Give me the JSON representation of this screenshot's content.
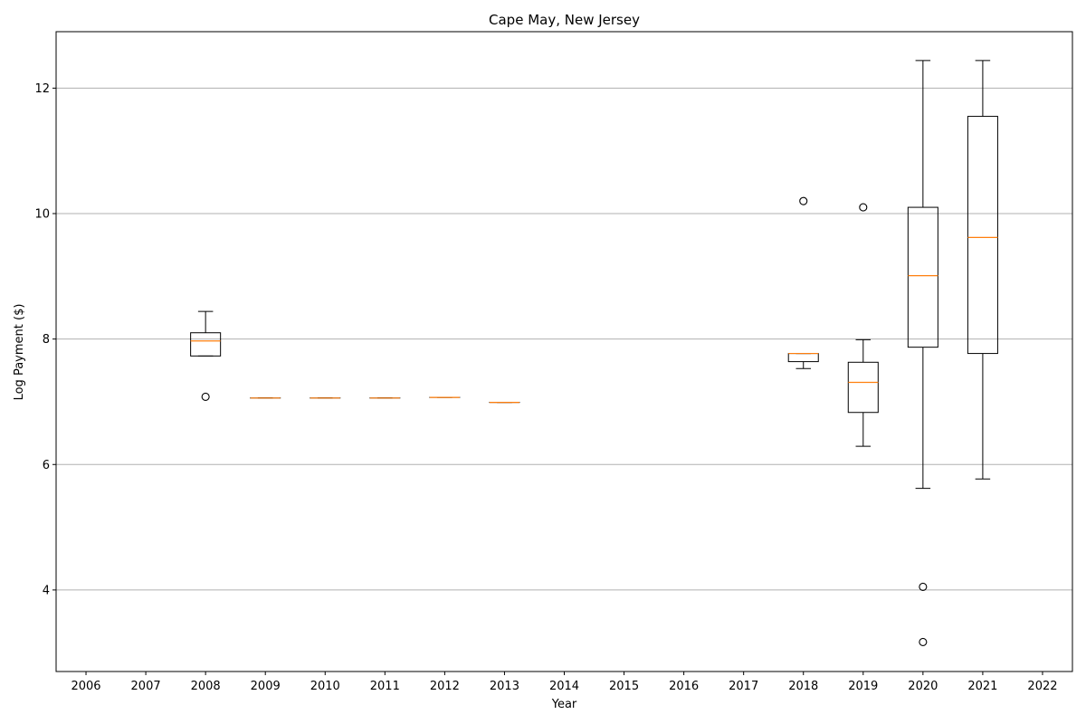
{
  "chart_data": {
    "type": "box",
    "title": "Cape May, New Jersey",
    "xlabel": "Year",
    "ylabel": "Log Payment ($)",
    "categories": [
      "2006",
      "2007",
      "2008",
      "2009",
      "2010",
      "2011",
      "2012",
      "2013",
      "2014",
      "2015",
      "2016",
      "2017",
      "2018",
      "2019",
      "2020",
      "2021",
      "2022"
    ],
    "ylim": [
      2.7,
      12.9
    ],
    "yticks": [
      4,
      6,
      8,
      10,
      12
    ],
    "grid": "y",
    "boxes": [
      {
        "category": "2008",
        "whisker_low": 7.73,
        "q1": 7.73,
        "median": 7.97,
        "q3": 8.1,
        "whisker_high": 8.44,
        "outliers": [
          7.08
        ]
      },
      {
        "category": "2009",
        "whisker_low": 7.06,
        "q1": 7.06,
        "median": 7.06,
        "q3": 7.06,
        "whisker_high": 7.06,
        "outliers": []
      },
      {
        "category": "2010",
        "whisker_low": 7.06,
        "q1": 7.06,
        "median": 7.06,
        "q3": 7.06,
        "whisker_high": 7.06,
        "outliers": []
      },
      {
        "category": "2011",
        "whisker_low": 7.06,
        "q1": 7.06,
        "median": 7.06,
        "q3": 7.06,
        "whisker_high": 7.06,
        "outliers": []
      },
      {
        "category": "2012",
        "whisker_low": 7.07,
        "q1": 7.07,
        "median": 7.07,
        "q3": 7.07,
        "whisker_high": 7.07,
        "outliers": []
      },
      {
        "category": "2013",
        "whisker_low": 6.99,
        "q1": 6.99,
        "median": 6.99,
        "q3": 6.99,
        "whisker_high": 6.99,
        "outliers": []
      },
      {
        "category": "2018",
        "whisker_low": 7.53,
        "q1": 7.64,
        "median": 7.77,
        "q3": 7.77,
        "whisker_high": 7.77,
        "outliers": [
          10.2
        ]
      },
      {
        "category": "2019",
        "whisker_low": 6.29,
        "q1": 6.83,
        "median": 7.31,
        "q3": 7.63,
        "whisker_high": 7.99,
        "outliers": [
          10.1
        ]
      },
      {
        "category": "2020",
        "whisker_low": 5.62,
        "q1": 7.87,
        "median": 9.01,
        "q3": 10.1,
        "whisker_high": 12.44,
        "outliers": [
          4.05,
          3.17
        ]
      },
      {
        "category": "2021",
        "whisker_low": 5.77,
        "q1": 7.77,
        "median": 9.62,
        "q3": 11.55,
        "whisker_high": 12.44,
        "outliers": []
      }
    ],
    "colors": {
      "box": "#000000",
      "median": "#ff7f0e",
      "grid": "#b0b0b0",
      "outlier": "#000000"
    }
  }
}
